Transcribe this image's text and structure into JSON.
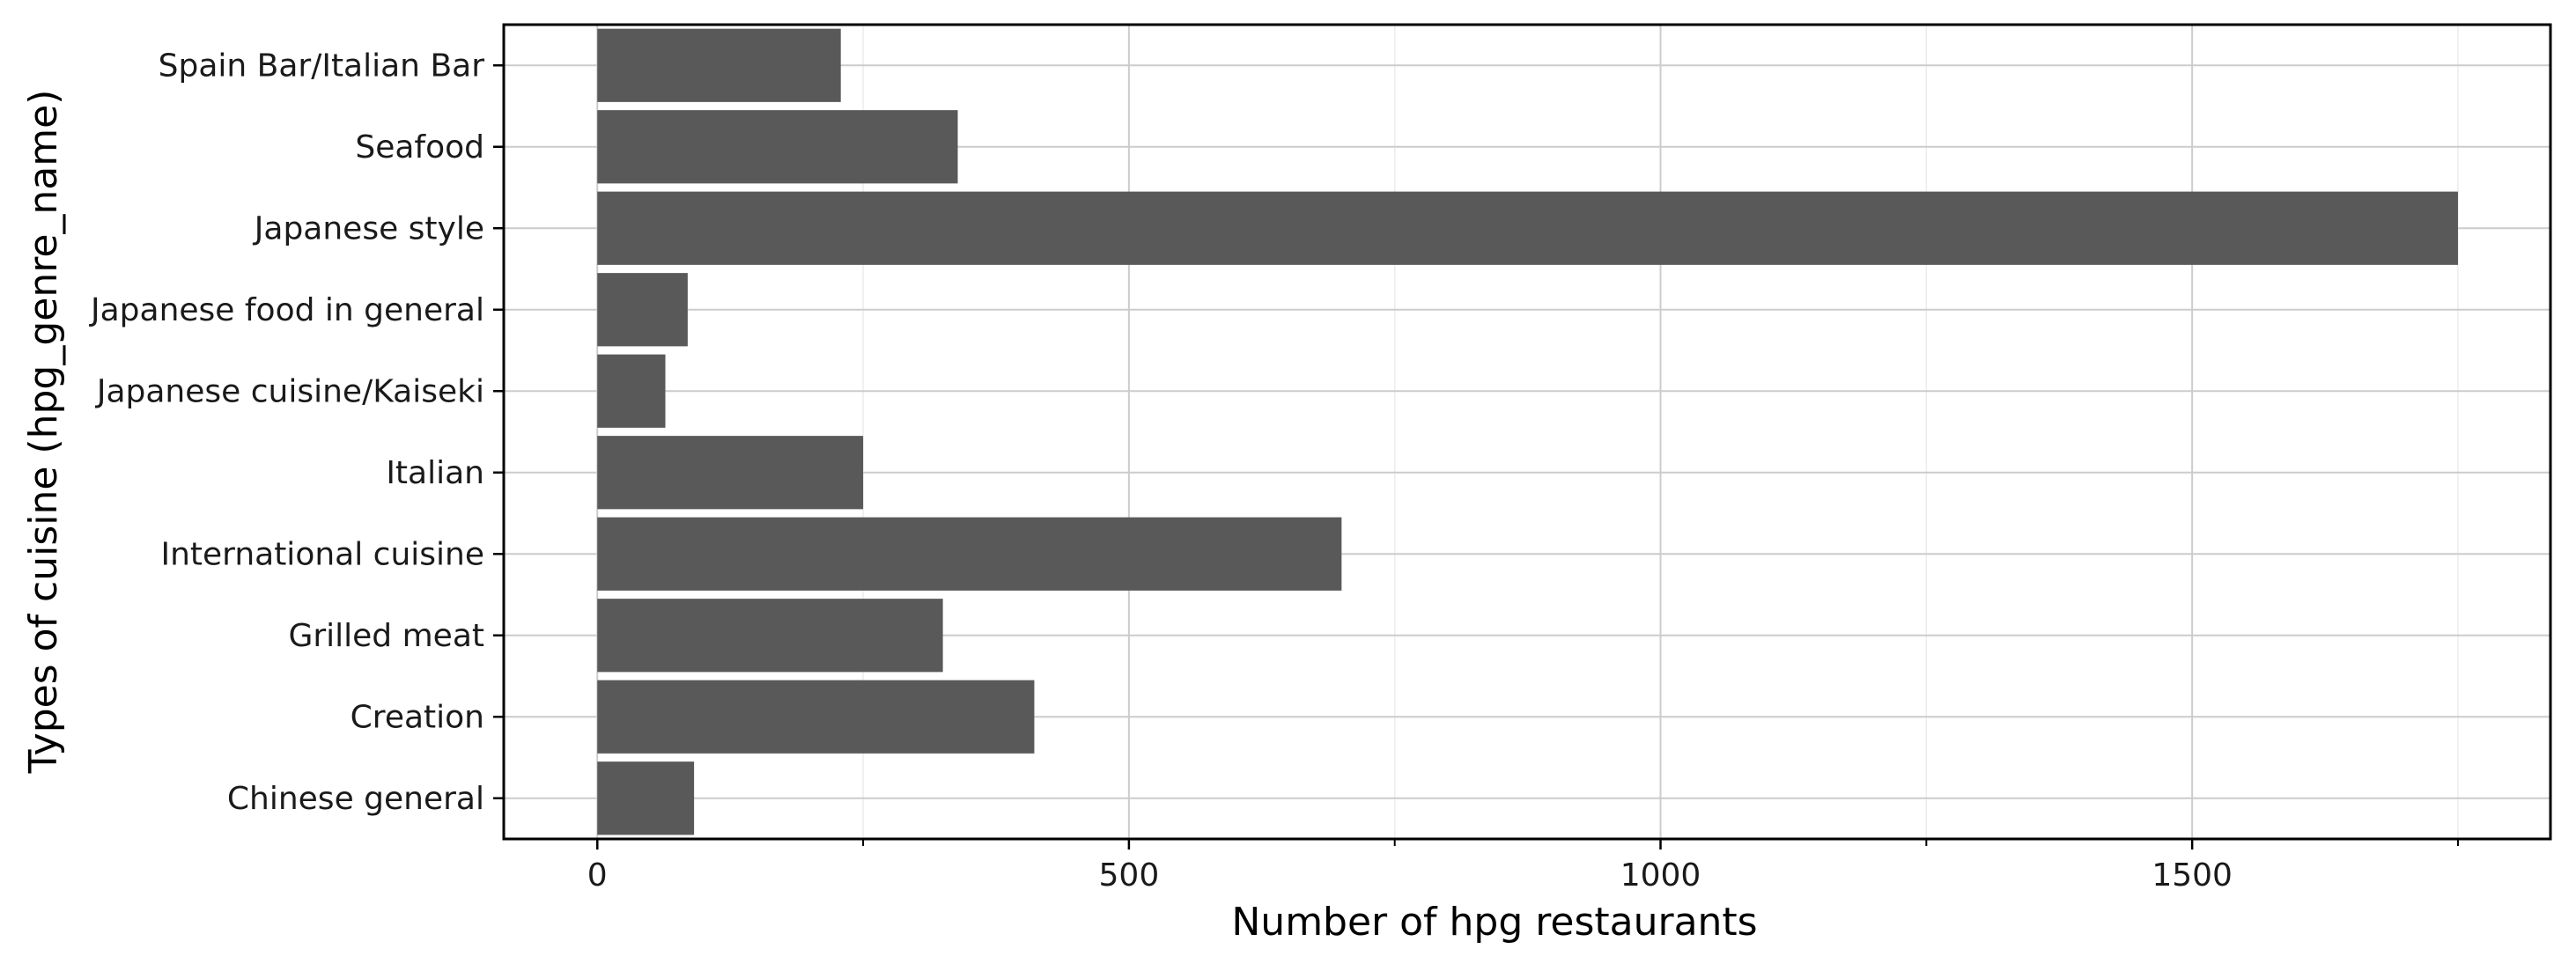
{
  "chart_data": {
    "type": "bar",
    "orientation": "horizontal",
    "title": "",
    "xlabel": "Number of hpg restaurants",
    "ylabel": "Types of cuisine (hpg_genre_name)",
    "categories": [
      "Spain Bar/Italian Bar",
      "Seafood",
      "Japanese style",
      "Japanese food in general",
      "Japanese cuisine/Kaiseki",
      "Italian",
      "International cuisine",
      "Grilled meat",
      "Creation",
      "Chinese general"
    ],
    "values": [
      229,
      339,
      1750,
      85,
      64,
      250,
      700,
      325,
      411,
      91
    ],
    "xlim": [
      -88,
      1837
    ],
    "xticks": [
      0,
      500,
      1000,
      1500
    ],
    "xtick_labels": [
      "0",
      "500",
      "1000",
      "1500"
    ],
    "grid": true,
    "bar_color": "#595959",
    "grid_color": "#cccccc",
    "panel_background": "#ffffff"
  }
}
